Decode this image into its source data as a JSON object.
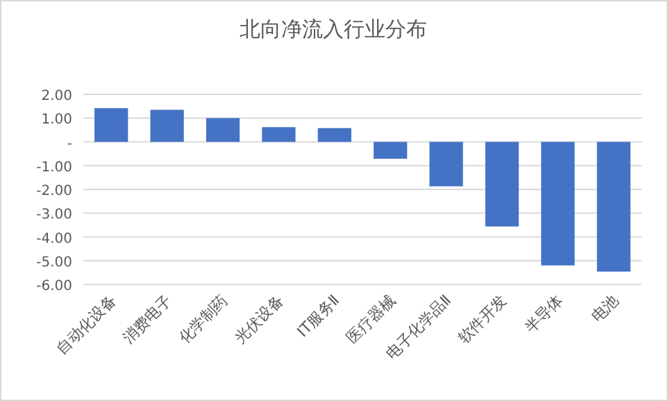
{
  "chart_data": {
    "type": "bar",
    "title": "北向净流入行业分布",
    "categories": [
      "自动化设备",
      "消费电子",
      "化学制药",
      "光伏设备",
      "IT服务Ⅱ",
      "医疗器械",
      "电子化学品Ⅱ",
      "软件开发",
      "半导体",
      "电池"
    ],
    "values": [
      1.42,
      1.35,
      1.0,
      0.62,
      0.58,
      -0.71,
      -1.87,
      -3.56,
      -5.2,
      -5.46
    ],
    "color": "#4472c4",
    "ylim": [
      -6,
      2
    ],
    "yticks": [
      {
        "value": 2,
        "label": "2.00"
      },
      {
        "value": 1,
        "label": "1.00"
      },
      {
        "value": 0,
        "label": "-"
      },
      {
        "value": -1,
        "label": "-1.00"
      },
      {
        "value": -2,
        "label": "-2.00"
      },
      {
        "value": -3,
        "label": "-3.00"
      },
      {
        "value": -4,
        "label": "-4.00"
      },
      {
        "value": -5,
        "label": "-5.00"
      },
      {
        "value": -6,
        "label": "-6.00"
      }
    ],
    "grid": "y"
  }
}
